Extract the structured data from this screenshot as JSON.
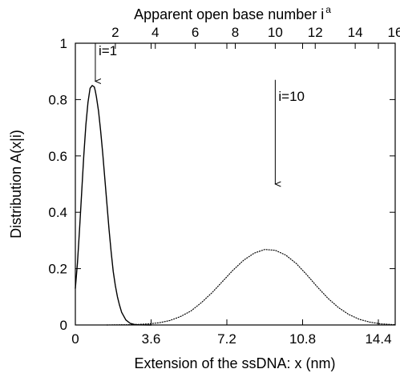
{
  "chart_data": {
    "type": "line",
    "xlabel": "Extension of the ssDNA: x (nm)",
    "ylabel": "Distribution A(x|i)",
    "top_xlabel": "Apparent open base number i",
    "top_xlabel_superscript": "a",
    "xlim": [
      0,
      15.2
    ],
    "ylim": [
      0,
      1
    ],
    "x_ticks": [
      0,
      3.6,
      7.2,
      10.8,
      14.4
    ],
    "x_tick_labels": [
      "0",
      "3.6",
      "7.2",
      "10.8",
      "14.4"
    ],
    "y_ticks": [
      0,
      0.2,
      0.4,
      0.6,
      0.8,
      1
    ],
    "y_tick_labels": [
      "0",
      "0.2",
      "0.4",
      "0.6",
      "0.8",
      "1"
    ],
    "top_axis": {
      "ticks": [
        2,
        4,
        6,
        8,
        10,
        12,
        14,
        16
      ],
      "tick_labels": [
        "2",
        "4",
        "6",
        "8",
        "10",
        "12",
        "14",
        "16"
      ],
      "nm_per_unit": 0.95
    },
    "grid": false,
    "series": [
      {
        "style": "solid",
        "color": "#000000",
        "x": [
          0,
          0.1,
          0.2,
          0.3,
          0.4,
          0.5,
          0.6,
          0.7,
          0.8,
          0.9,
          0.95,
          1.0,
          1.1,
          1.2,
          1.3,
          1.4,
          1.5,
          1.6,
          1.7,
          1.8,
          1.9,
          2.0,
          2.1,
          2.2,
          2.4,
          2.6,
          2.8,
          3.0,
          3.3,
          3.6
        ],
        "y": [
          0.13,
          0.22,
          0.34,
          0.47,
          0.6,
          0.71,
          0.79,
          0.84,
          0.85,
          0.845,
          0.83,
          0.81,
          0.76,
          0.69,
          0.61,
          0.52,
          0.43,
          0.34,
          0.26,
          0.19,
          0.14,
          0.1,
          0.07,
          0.045,
          0.018,
          0.006,
          0.002,
          0.0005,
          0.0001,
          0.0
        ]
      },
      {
        "style": "dotted",
        "color": "#000000",
        "x": [
          1.5,
          2.0,
          2.5,
          3.0,
          3.5,
          4.0,
          4.5,
          5.0,
          5.5,
          6.0,
          6.5,
          7.0,
          7.5,
          8.0,
          8.5,
          9.0,
          9.5,
          10.0,
          10.5,
          11.0,
          11.5,
          12.0,
          12.5,
          13.0,
          13.5,
          14.0,
          14.5,
          15.2
        ],
        "y": [
          0.0,
          0.0005,
          0.001,
          0.002,
          0.004,
          0.008,
          0.016,
          0.03,
          0.05,
          0.08,
          0.115,
          0.155,
          0.195,
          0.23,
          0.255,
          0.268,
          0.265,
          0.248,
          0.218,
          0.178,
          0.135,
          0.095,
          0.062,
          0.037,
          0.02,
          0.01,
          0.004,
          0.001
        ]
      }
    ],
    "annotations": [
      {
        "label": "i=1",
        "arrow_x": 0.95,
        "arrow_y_from": 1.0,
        "arrow_y_to": 0.865
      },
      {
        "label": "i=10",
        "arrow_x": 9.5,
        "arrow_y_from": 0.87,
        "arrow_y_to": 0.5
      }
    ]
  }
}
